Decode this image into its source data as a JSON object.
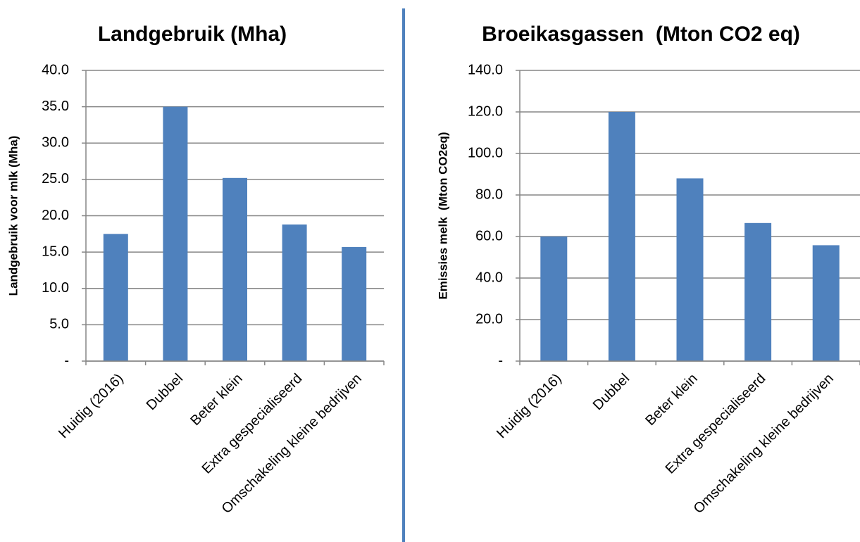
{
  "chart_data": [
    {
      "type": "bar",
      "title": "Landgebruik (Mha)",
      "y_label": "Landgebruik voor mlk (Mha)",
      "categories": [
        "Huidig (2016)",
        "Dubbel",
        "Beter klein",
        "Extra gespecialiseerd",
        "Omschakeling kleine bedrijven"
      ],
      "values": [
        17.5,
        35.0,
        25.2,
        18.8,
        15.7
      ],
      "color": "#4f81bd",
      "ylim": [
        0,
        40
      ],
      "yticks": [
        {
          "value": 0,
          "label": "-"
        },
        {
          "value": 5,
          "label": "5.0"
        },
        {
          "value": 10,
          "label": "10.0"
        },
        {
          "value": 15,
          "label": "15.0"
        },
        {
          "value": 20,
          "label": "20.0"
        },
        {
          "value": 25,
          "label": "25.0"
        },
        {
          "value": 30,
          "label": "30.0"
        },
        {
          "value": 35,
          "label": "35.0"
        },
        {
          "value": 40,
          "label": "40.0"
        }
      ],
      "grid": true
    },
    {
      "type": "bar",
      "title": "Broeikasgassen  (Mton CO2 eq)",
      "y_label": "Emissies melk  (Mton CO2eq)",
      "categories": [
        "Huidig (2016)",
        "Dubbel",
        "Beter klein",
        "Extra gespecialiseerd",
        "Omschakeling kleine bedrijven"
      ],
      "values": [
        60.0,
        120.0,
        88.0,
        66.5,
        55.8
      ],
      "color": "#4f81bd",
      "ylim": [
        0,
        140
      ],
      "yticks": [
        {
          "value": 0,
          "label": "-"
        },
        {
          "value": 20,
          "label": "20.0"
        },
        {
          "value": 40,
          "label": "40.0"
        },
        {
          "value": 60,
          "label": "60.0"
        },
        {
          "value": 80,
          "label": "80.0"
        },
        {
          "value": 100,
          "label": "100.0"
        },
        {
          "value": 120,
          "label": "120.0"
        },
        {
          "value": 140,
          "label": "140.0"
        }
      ],
      "grid": true
    }
  ]
}
